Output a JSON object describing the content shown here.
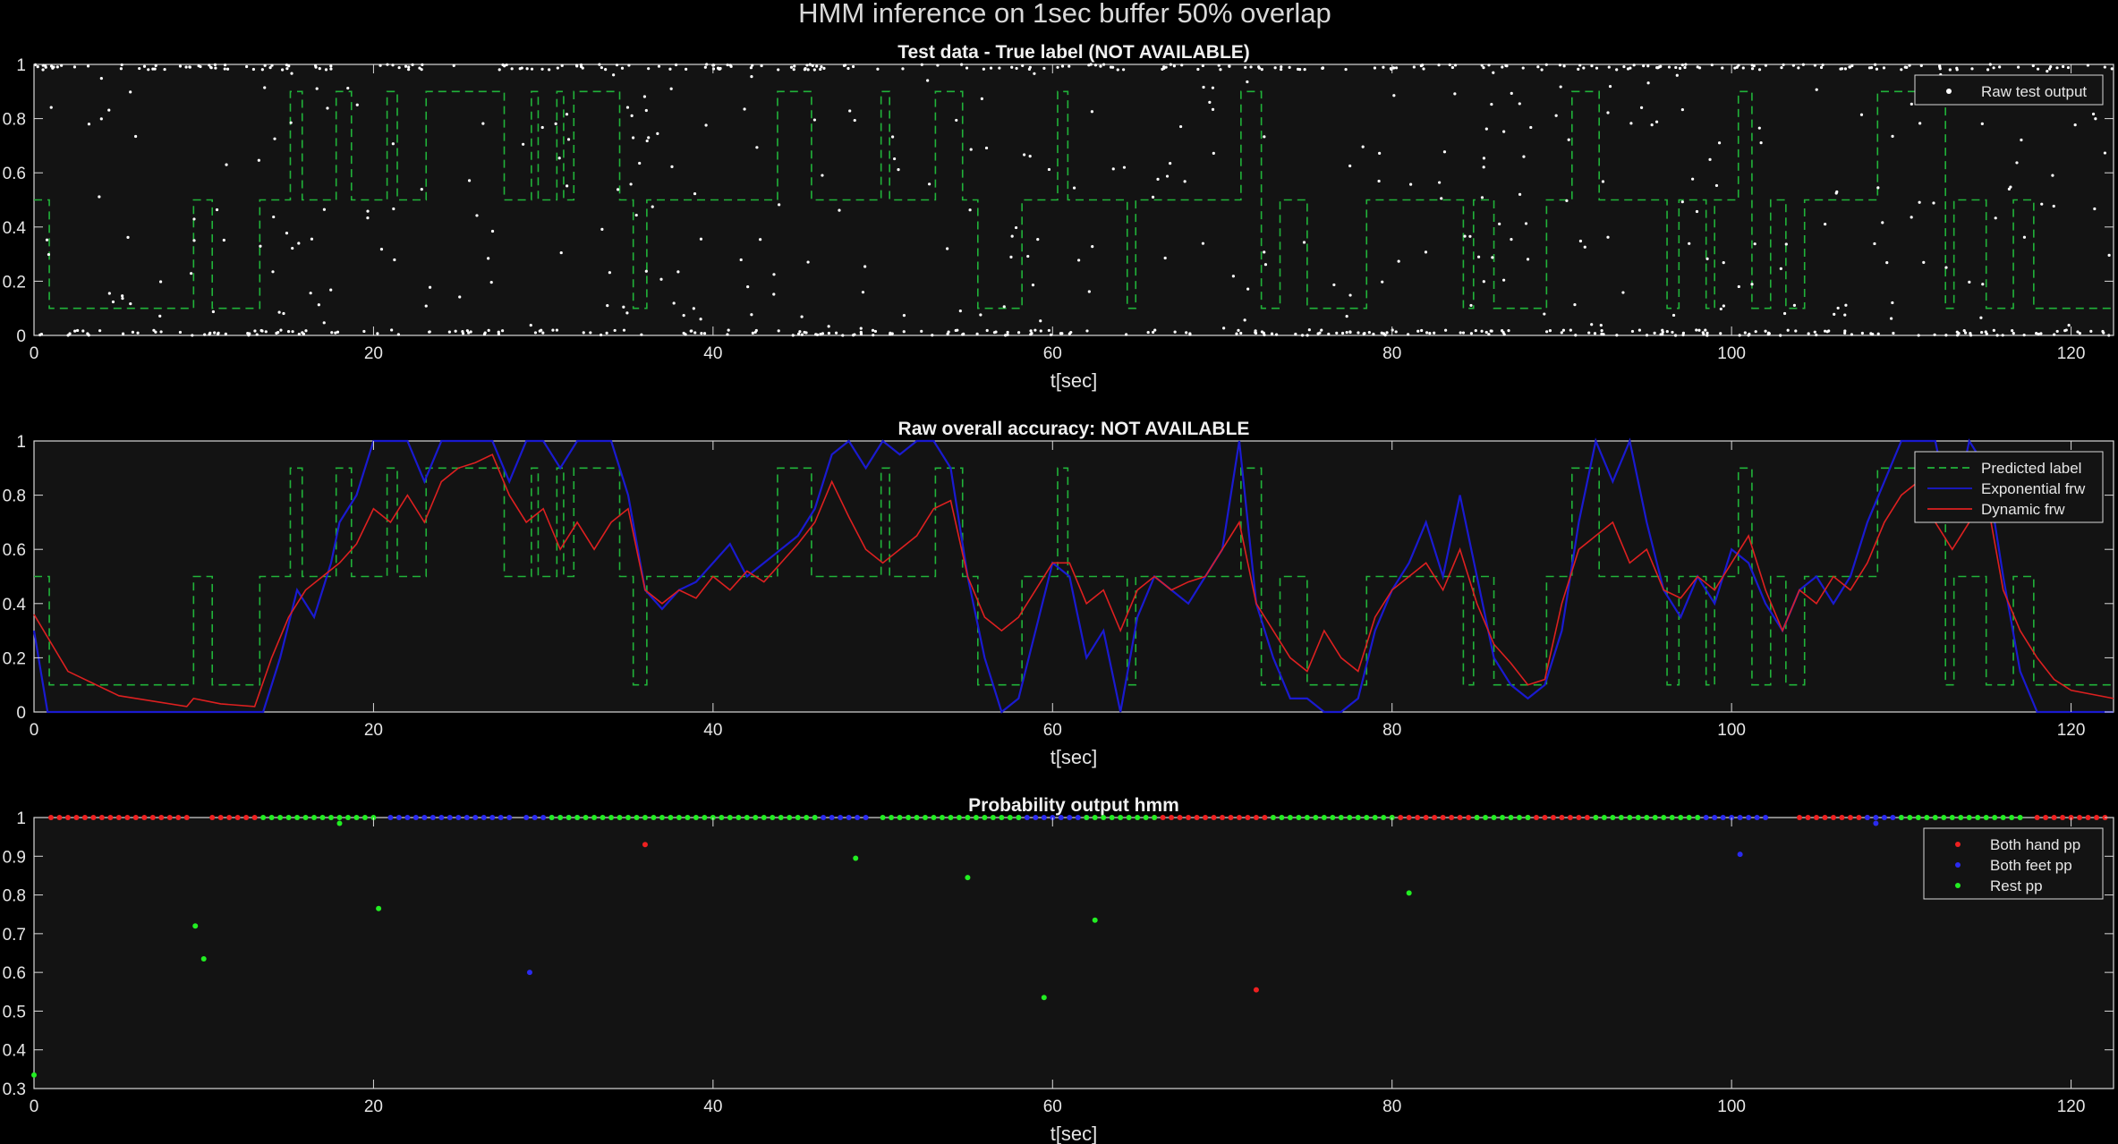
{
  "figure": {
    "title": "HMM inference on 1sec buffer 50% overlap",
    "colors": {
      "background": "#000000",
      "axes": "#131313",
      "axis_line": "#d9d9d9",
      "green": "#21b33a",
      "blue": "#1a1ad0",
      "red": "#dd2020",
      "white": "#ffffff",
      "dot_green": "#22ee22",
      "dot_red": "#ee2020",
      "dot_blue": "#2a2af0"
    }
  },
  "chart_data": [
    {
      "type": "scatter+line",
      "title": "Test data - True label (NOT AVAILABLE)",
      "xlabel": "t[sec]",
      "xlim": [
        0,
        122.5
      ],
      "ylim": [
        0,
        1
      ],
      "xticks": [
        "0",
        "20",
        "40",
        "60",
        "80",
        "100",
        "120"
      ],
      "yticks": [
        "0",
        "0.2",
        "0.4",
        "0.6",
        "0.8",
        "1"
      ],
      "legend_position": "top-right",
      "legend": [
        "Raw test output"
      ],
      "series": [
        {
          "name": "Raw test output",
          "style": "white-dots",
          "points": "dense white points spread over t = 0..122.5 s, mostly clustered at 0 and 1"
        }
      ],
      "label_step": {
        "style": "green-dashed-step",
        "x": [
          0,
          0.9,
          9.4,
          10.5,
          13.3,
          15.1,
          15.8,
          17.8,
          18.7,
          19.1,
          20.8,
          21.4,
          23.1,
          24.8,
          27.7,
          29.3,
          29.7,
          30.8,
          31.2,
          31.8,
          34.5,
          35.3,
          36.1,
          36.9,
          43.8,
          45.8,
          49.9,
          50.4,
          53.1,
          54.7,
          55.6,
          58.2,
          60.3,
          60.9,
          64.4,
          64.9,
          71.1,
          72.3,
          73.4,
          75.0,
          76.8,
          78.5,
          84.2,
          84.8,
          86.0,
          89.1,
          90.6,
          92.2,
          96.2,
          96.9,
          98.5,
          99.0,
          100.4,
          101.2,
          102.3,
          103.2,
          104.3,
          108.6,
          109.6,
          112.6,
          113.1,
          115.0,
          116.6,
          117.8,
          118.9,
          122.5
        ],
        "y": [
          0.5,
          0.1,
          0.5,
          0.1,
          0.5,
          0.9,
          0.5,
          0.9,
          0.5,
          0.5,
          0.9,
          0.5,
          0.9,
          0.9,
          0.5,
          0.9,
          0.5,
          0.9,
          0.5,
          0.9,
          0.5,
          0.1,
          0.5,
          0.5,
          0.9,
          0.5,
          0.9,
          0.5,
          0.9,
          0.5,
          0.1,
          0.5,
          0.9,
          0.5,
          0.1,
          0.5,
          0.9,
          0.1,
          0.5,
          0.1,
          0.1,
          0.5,
          0.1,
          0.5,
          0.1,
          0.5,
          0.9,
          0.5,
          0.1,
          0.5,
          0.1,
          0.5,
          0.9,
          0.1,
          0.5,
          0.1,
          0.5,
          0.9,
          0.9,
          0.1,
          0.5,
          0.1,
          0.5,
          0.1,
          0.1,
          0.1
        ]
      }
    },
    {
      "type": "line",
      "title": "Raw overall accuracy: NOT AVAILABLE",
      "xlabel": "t[sec]",
      "xlim": [
        0,
        122.5
      ],
      "ylim": [
        0,
        1
      ],
      "xticks": [
        "0",
        "20",
        "40",
        "60",
        "80",
        "100",
        "120"
      ],
      "yticks": [
        "0",
        "0.2",
        "0.4",
        "0.6",
        "0.8",
        "1"
      ],
      "legend_position": "top-right",
      "legend": [
        "Predicted label",
        "Exponential frw",
        "Dynamic frw"
      ],
      "series": [
        {
          "name": "Predicted label",
          "style": "green-dashed-step",
          "same_as": "label_step of first panel"
        },
        {
          "name": "Exponential frw",
          "color": "#1a1ad0",
          "x": [
            0,
            0.8,
            2,
            9,
            11,
            12.5,
            13.5,
            14.5,
            15.5,
            16.5,
            17.5,
            18,
            19,
            20,
            21,
            22,
            23,
            24,
            25,
            27,
            28,
            29,
            30,
            31,
            32,
            33,
            34,
            35,
            36,
            37,
            38,
            39,
            40,
            41,
            42,
            43,
            44,
            45,
            46,
            47,
            48,
            49,
            50,
            51,
            52,
            53,
            54,
            55,
            56,
            57,
            58,
            59,
            60,
            61,
            62,
            63,
            64,
            65,
            66,
            67,
            68,
            69,
            70,
            71,
            72,
            73,
            74,
            75,
            76,
            77,
            78,
            79,
            80,
            81,
            82,
            83,
            84,
            85,
            86,
            87,
            88,
            89,
            90,
            91,
            92,
            93,
            94,
            95,
            96,
            97,
            98,
            99,
            100,
            101,
            102,
            103,
            104,
            105,
            106,
            107,
            108,
            109,
            110,
            111,
            112,
            113,
            114,
            115,
            116,
            117,
            118,
            119,
            120,
            122.5
          ],
          "y": [
            0.3,
            0,
            0,
            0,
            0,
            0,
            0,
            0.2,
            0.45,
            0.35,
            0.55,
            0.7,
            0.8,
            1,
            1,
            1,
            0.85,
            1,
            1,
            1,
            0.85,
            1,
            1,
            0.9,
            1,
            1,
            1,
            0.8,
            0.45,
            0.38,
            0.45,
            0.48,
            0.55,
            0.62,
            0.5,
            0.55,
            0.6,
            0.65,
            0.75,
            0.95,
            1,
            0.9,
            1,
            0.95,
            1,
            1,
            0.9,
            0.5,
            0.2,
            0,
            0.05,
            0.3,
            0.55,
            0.5,
            0.2,
            0.3,
            0,
            0.35,
            0.5,
            0.45,
            0.4,
            0.5,
            0.6,
            1,
            0.4,
            0.2,
            0.05,
            0.05,
            0,
            0,
            0.05,
            0.3,
            0.45,
            0.55,
            0.7,
            0.5,
            0.8,
            0.5,
            0.2,
            0.1,
            0.05,
            0.1,
            0.3,
            0.7,
            1,
            0.85,
            1,
            0.7,
            0.45,
            0.35,
            0.5,
            0.4,
            0.6,
            0.55,
            0.4,
            0.3,
            0.45,
            0.5,
            0.4,
            0.5,
            0.7,
            0.85,
            1,
            1,
            1,
            0.7,
            1,
            0.9,
            0.5,
            0.15,
            0,
            0,
            0,
            0
          ]
        },
        {
          "name": "Dynamic frw",
          "color": "#dd2020",
          "x": [
            0,
            2,
            5,
            9,
            9.4,
            11,
            13,
            14,
            15,
            16,
            17,
            18,
            19,
            20,
            21,
            22,
            23,
            24,
            25,
            26,
            27,
            28,
            29,
            30,
            31,
            32,
            33,
            34,
            35,
            36,
            37,
            38,
            39,
            40,
            41,
            42,
            43,
            44,
            45,
            46,
            47,
            48,
            49,
            50,
            51,
            52,
            53,
            54,
            55,
            56,
            57,
            58,
            59,
            60,
            61,
            62,
            63,
            64,
            65,
            66,
            67,
            68,
            69,
            70,
            71,
            72,
            73,
            74,
            75,
            76,
            77,
            78,
            79,
            80,
            81,
            82,
            83,
            84,
            85,
            86,
            87,
            88,
            89,
            90,
            91,
            92,
            93,
            94,
            95,
            96,
            97,
            98,
            99,
            100,
            101,
            102,
            103,
            104,
            105,
            106,
            107,
            108,
            109,
            110,
            111,
            112,
            113,
            114,
            115,
            116,
            117,
            118,
            119,
            120,
            122.5
          ],
          "y": [
            0.36,
            0.15,
            0.06,
            0.02,
            0.05,
            0.03,
            0.02,
            0.2,
            0.35,
            0.45,
            0.5,
            0.55,
            0.62,
            0.75,
            0.7,
            0.8,
            0.7,
            0.85,
            0.9,
            0.92,
            0.95,
            0.8,
            0.7,
            0.75,
            0.6,
            0.7,
            0.6,
            0.7,
            0.75,
            0.45,
            0.4,
            0.45,
            0.42,
            0.5,
            0.45,
            0.52,
            0.48,
            0.55,
            0.62,
            0.7,
            0.85,
            0.72,
            0.6,
            0.55,
            0.6,
            0.65,
            0.75,
            0.78,
            0.5,
            0.35,
            0.3,
            0.35,
            0.45,
            0.55,
            0.55,
            0.4,
            0.45,
            0.3,
            0.45,
            0.5,
            0.45,
            0.48,
            0.5,
            0.6,
            0.7,
            0.4,
            0.3,
            0.2,
            0.15,
            0.3,
            0.2,
            0.15,
            0.35,
            0.45,
            0.5,
            0.55,
            0.45,
            0.6,
            0.4,
            0.25,
            0.18,
            0.1,
            0.12,
            0.4,
            0.6,
            0.65,
            0.7,
            0.55,
            0.6,
            0.45,
            0.42,
            0.5,
            0.45,
            0.55,
            0.65,
            0.45,
            0.3,
            0.45,
            0.4,
            0.5,
            0.45,
            0.55,
            0.7,
            0.8,
            0.85,
            0.7,
            0.6,
            0.7,
            0.8,
            0.45,
            0.3,
            0.2,
            0.12,
            0.08,
            0.05
          ]
        }
      ]
    },
    {
      "type": "scatter",
      "title": "Probability output hmm",
      "xlabel": "t[sec]",
      "xlim": [
        0,
        122.5
      ],
      "ylim": [
        0.3,
        1
      ],
      "xticks": [
        "0",
        "20",
        "40",
        "60",
        "80",
        "100",
        "120"
      ],
      "yticks": [
        "0.3",
        "0.4",
        "0.5",
        "0.6",
        "0.7",
        "0.8",
        "0.9",
        "1"
      ],
      "legend_position": "top-right",
      "legend": [
        "Both hand pp",
        "Both feet pp",
        "Rest pp"
      ],
      "series": [
        {
          "name": "Both hand pp",
          "color": "#ee2020",
          "off_line_points": [
            [
              36,
              0.93
            ],
            [
              72,
              0.555
            ]
          ],
          "on_line_ranges": [
            [
              1,
              9
            ],
            [
              10.5,
              13
            ],
            [
              66,
              73
            ],
            [
              80,
              85
            ],
            [
              88,
              92
            ],
            [
              104,
              108
            ],
            [
              118,
              122
            ]
          ]
        },
        {
          "name": "Both feet pp",
          "color": "#2a2af0",
          "off_line_points": [
            [
              29.2,
              0.6
            ],
            [
              100.5,
              0.905
            ],
            [
              108.5,
              0.985
            ]
          ],
          "on_line_ranges": [
            [
              21,
              28
            ],
            [
              29,
              32
            ],
            [
              46,
              49
            ],
            [
              58,
              62
            ],
            [
              98,
              102
            ],
            [
              108,
              110
            ]
          ]
        },
        {
          "name": "Rest pp",
          "color": "#22ee22",
          "off_line_points": [
            [
              0,
              0.335
            ],
            [
              9.5,
              0.72
            ],
            [
              10,
              0.635
            ],
            [
              18,
              0.985
            ],
            [
              20.3,
              0.765
            ],
            [
              48.4,
              0.895
            ],
            [
              55,
              0.845
            ],
            [
              59.5,
              0.535
            ],
            [
              62.5,
              0.735
            ],
            [
              81,
              0.805
            ]
          ],
          "on_line_ranges": [
            [
              13.5,
              20
            ],
            [
              30.5,
              36
            ],
            [
              36.5,
              46
            ],
            [
              50,
              58
            ],
            [
              62,
              66
            ],
            [
              73,
              80
            ],
            [
              85,
              88
            ],
            [
              92,
              98
            ],
            [
              110,
              117
            ]
          ]
        }
      ]
    }
  ]
}
